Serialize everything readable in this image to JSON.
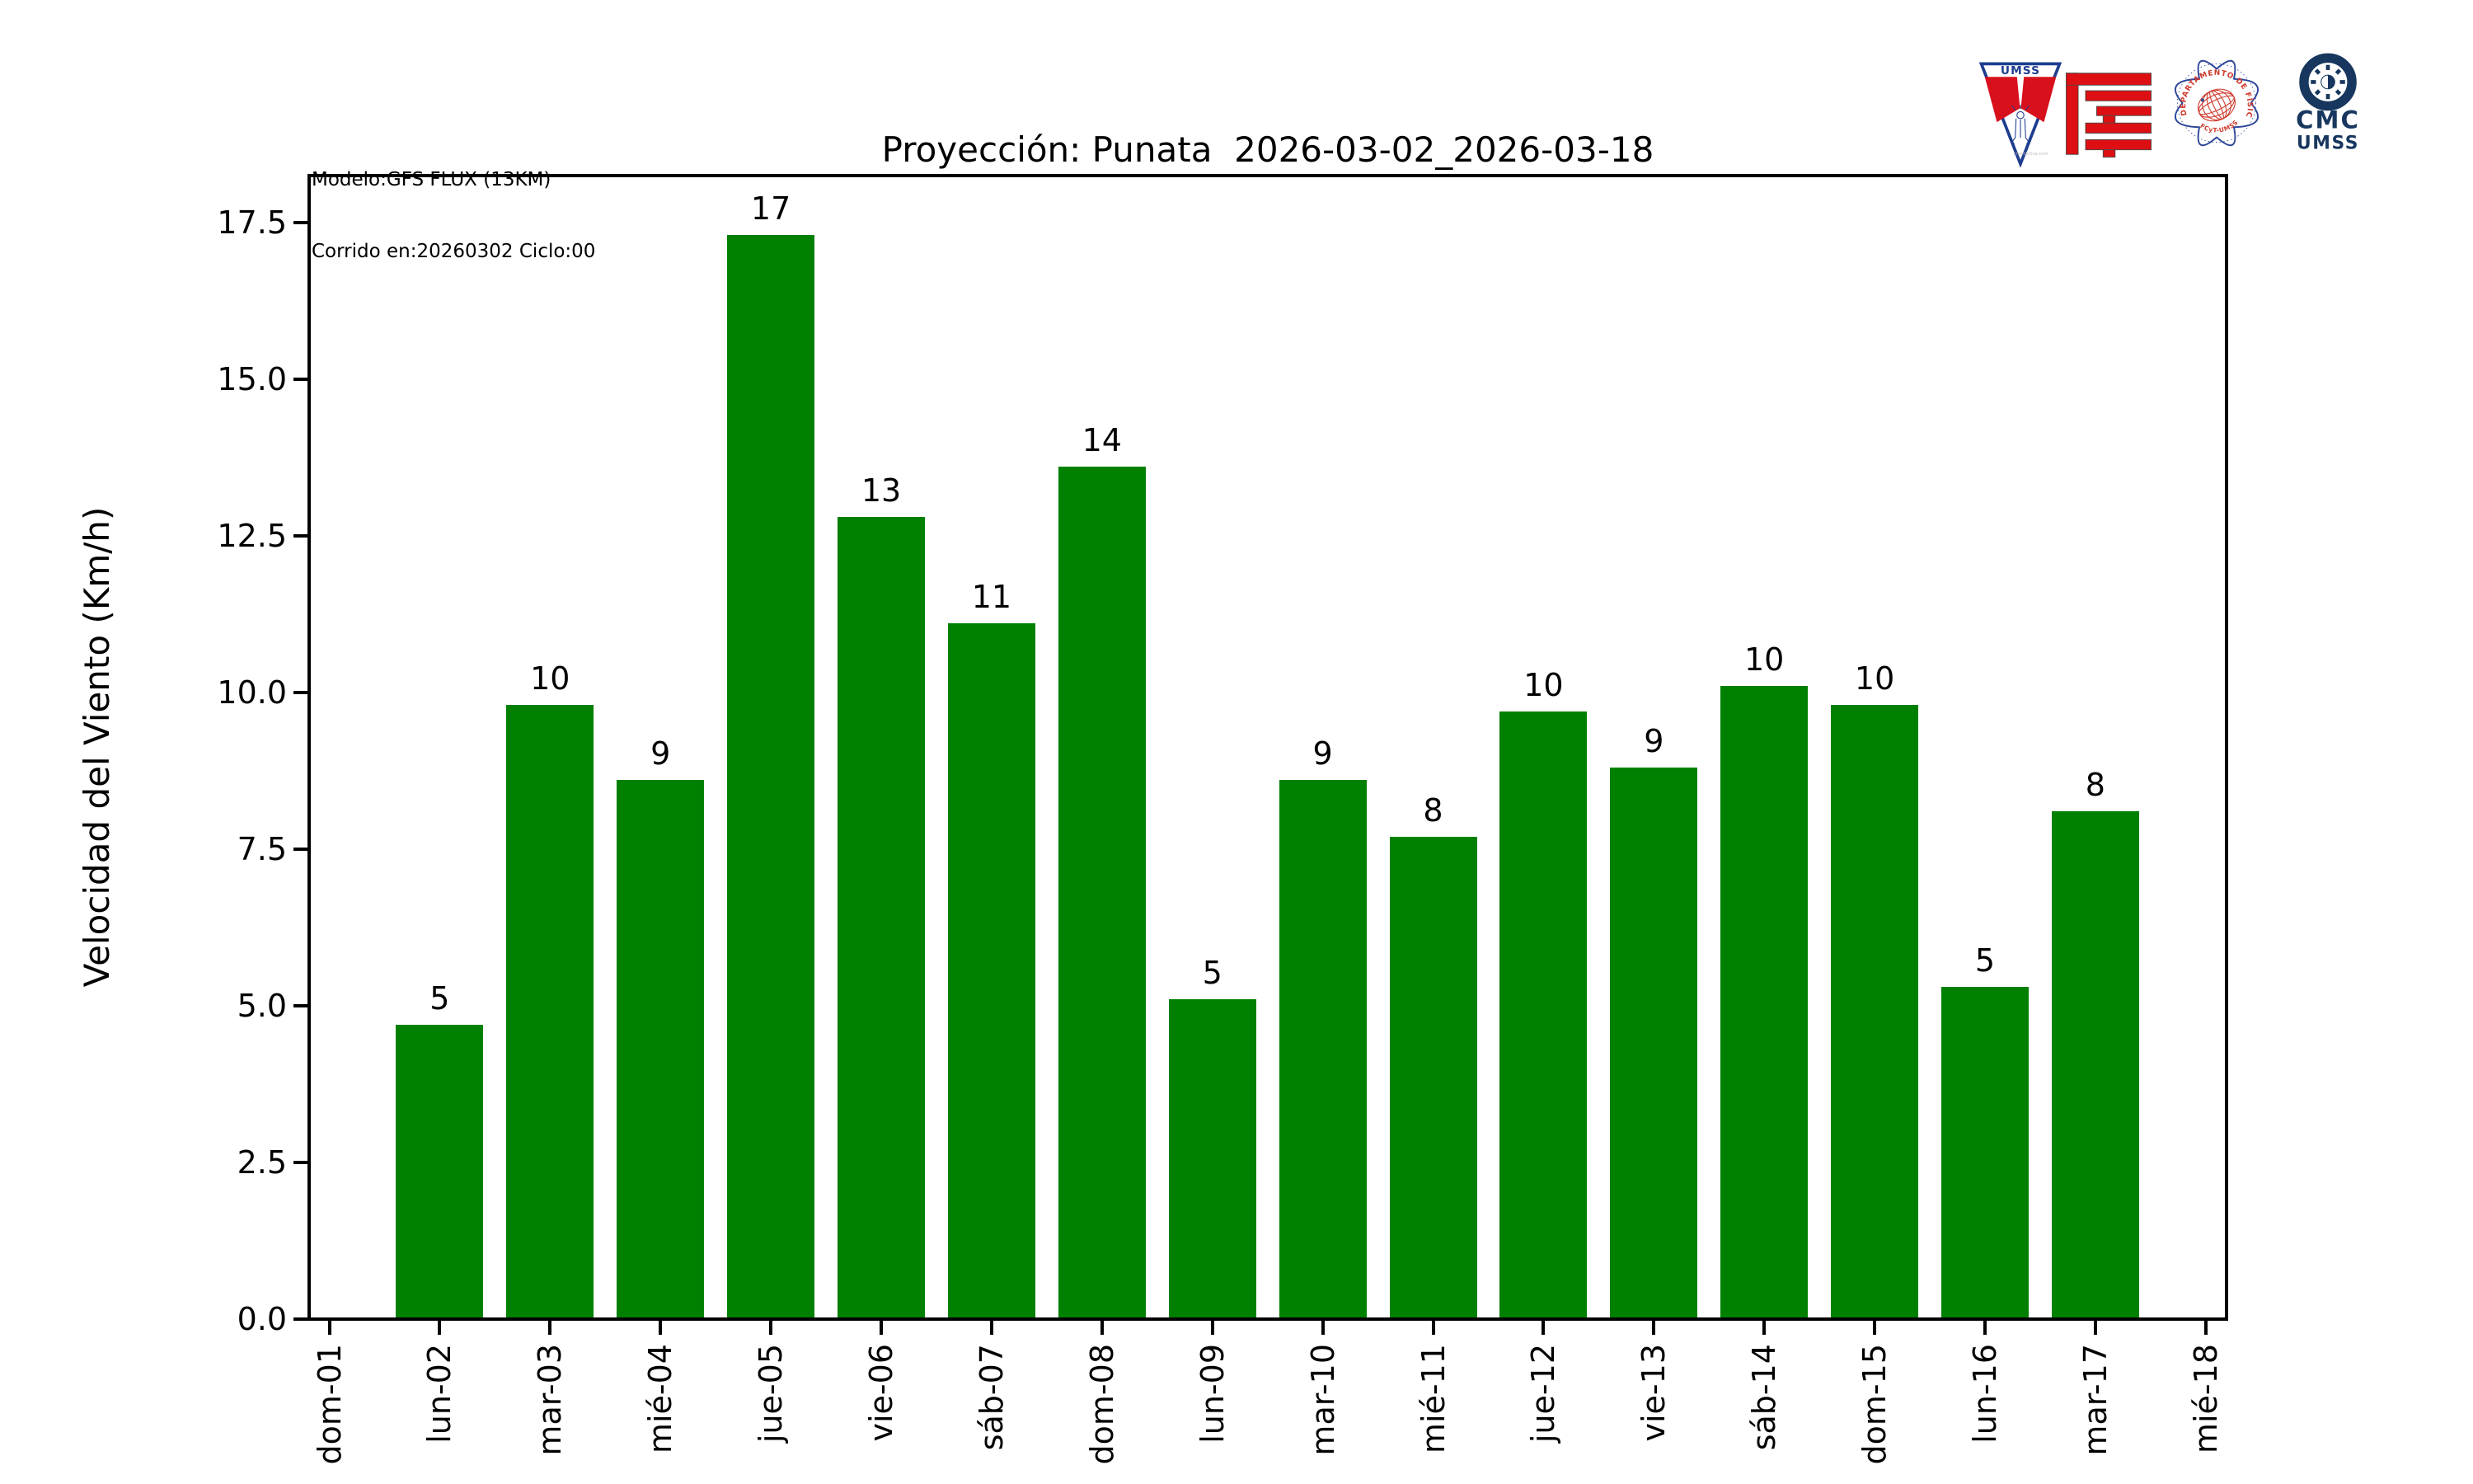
{
  "header": {
    "model_line1": "Modelo:GFS FLUX (13KM)",
    "model_line2": "Corrido en:20260302 Ciclo:00",
    "title": "Proyección: Punata  2026-03-02_2026-03-18"
  },
  "logos": {
    "umss_shield": {
      "icon": "umss-shield-icon",
      "text": "UMSS",
      "watermark": "creadictiva.com",
      "red": "#d8101c",
      "blue": "#1e3d8f"
    },
    "fcyt": {
      "icon": "fcyt-red-maze-icon",
      "red": "#dd0f12"
    },
    "physics_seal": {
      "icon": "physics-department-seal-icon",
      "top_text": "DEPARTAMENTO DE FÍSICA",
      "bottom_text": "FCyT-UMSS",
      "blue": "#2e4799",
      "red": "#cf3a2d"
    },
    "cmc": {
      "icon": "cmc-sun-gear-icon",
      "line1": "CMC",
      "line2": "UMSS",
      "navy": "#17375e"
    }
  },
  "chart_data": {
    "type": "bar",
    "title": "Proyección: Punata  2026-03-02_2026-03-18",
    "xlabel": "",
    "ylabel": "Velocidad del Viento (Km/h)",
    "categories": [
      "dom-01",
      "lun-02",
      "mar-03",
      "mié-04",
      "jue-05",
      "vie-06",
      "sáb-07",
      "dom-08",
      "lun-09",
      "mar-10",
      "mié-11",
      "jue-12",
      "vie-13",
      "sáb-14",
      "dom-15",
      "lun-16",
      "mar-17",
      "mié-18"
    ],
    "values": [
      null,
      4.7,
      9.8,
      8.6,
      17.3,
      12.8,
      11.1,
      13.6,
      5.1,
      8.6,
      7.7,
      9.7,
      8.8,
      10.1,
      9.8,
      5.3,
      8.1,
      null
    ],
    "bar_labels": [
      null,
      "5",
      "10",
      "9",
      "17",
      "13",
      "11",
      "14",
      "5",
      "9",
      "8",
      "10",
      "9",
      "10",
      "10",
      "5",
      "8",
      null
    ],
    "yticks": [
      0,
      2.5,
      5,
      7.5,
      10,
      12.5,
      15,
      17.5
    ],
    "ytick_labels": [
      "0.0",
      "2.5",
      "5.0",
      "7.5",
      "10.0",
      "12.5",
      "15.0",
      "17.5"
    ],
    "ylim": [
      0,
      18.25
    ],
    "bar_color": "#008000",
    "grid": false,
    "legend": null
  }
}
